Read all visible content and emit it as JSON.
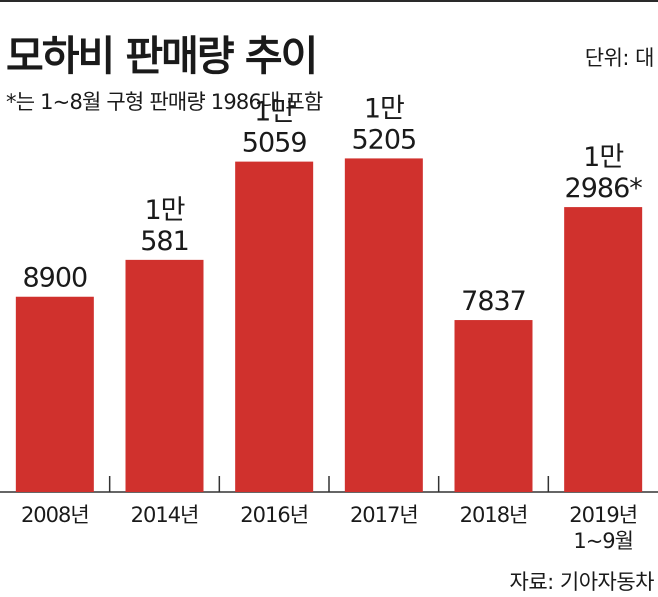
{
  "title": "모하비 판매량 추이",
  "unit_label": "단위: 대",
  "footnote": "*는 1~8월 구형 판매량 1986대 포함",
  "source": "자료: 기아자동차",
  "colors": {
    "bar": "#d0312d",
    "axis": "#333333",
    "text": "#1a1a1a"
  },
  "chart_data": {
    "type": "bar",
    "title": "모하비 판매량 추이",
    "xlabel": "",
    "ylabel": "",
    "unit": "단위: 대",
    "ylim": [
      0,
      16500
    ],
    "grid": false,
    "legend": "none",
    "categories": [
      {
        "lines": [
          "2008년"
        ]
      },
      {
        "lines": [
          "2014년"
        ]
      },
      {
        "lines": [
          "2016년"
        ]
      },
      {
        "lines": [
          "2017년"
        ]
      },
      {
        "lines": [
          "2018년"
        ]
      },
      {
        "lines": [
          "2019년",
          "1~9월"
        ]
      }
    ],
    "values": [
      8900,
      10581,
      15059,
      15205,
      7837,
      12986
    ],
    "value_labels": [
      {
        "lines": [
          "8900"
        ]
      },
      {
        "lines": [
          "1만",
          "581"
        ]
      },
      {
        "lines": [
          "1만",
          "5059"
        ]
      },
      {
        "lines": [
          "1만",
          "5205"
        ]
      },
      {
        "lines": [
          "7837"
        ]
      },
      {
        "lines": [
          "1만",
          "2986*"
        ]
      }
    ]
  }
}
